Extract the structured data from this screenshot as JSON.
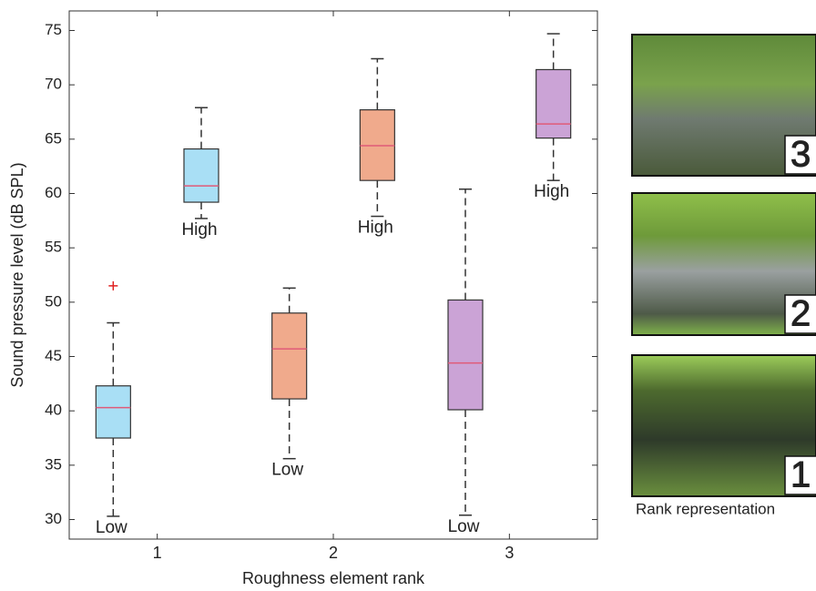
{
  "chart_data": {
    "type": "box",
    "xlabel": "Roughness element rank",
    "ylabel": "Sound pressure level (dB SPL)",
    "xlim": [
      0.5,
      3.5
    ],
    "xticks": [
      1,
      2,
      3
    ],
    "ylim": [
      28.2,
      76.8
    ],
    "yticks": [
      30,
      35,
      40,
      45,
      50,
      55,
      60,
      65,
      70,
      75
    ],
    "median_color": "#e05a78",
    "outlier_color": "#e02020",
    "boxes": [
      {
        "x": 0.75,
        "label": "Low",
        "color": "#a9dff5",
        "whisker_low": 30.3,
        "q1": 37.5,
        "median": 40.3,
        "q3": 42.3,
        "whisker_high": 48.1,
        "outliers": [
          51.5
        ]
      },
      {
        "x": 1.25,
        "label": "High",
        "color": "#a9dff5",
        "whisker_low": 57.7,
        "q1": 59.2,
        "median": 60.7,
        "q3": 64.1,
        "whisker_high": 67.9,
        "outliers": []
      },
      {
        "x": 1.75,
        "label": "Low",
        "color": "#f0aa8c",
        "whisker_low": 35.6,
        "q1": 41.1,
        "median": 45.7,
        "q3": 49.0,
        "whisker_high": 51.3,
        "outliers": []
      },
      {
        "x": 2.25,
        "label": "High",
        "color": "#f0aa8c",
        "whisker_low": 57.9,
        "q1": 61.2,
        "median": 64.4,
        "q3": 67.7,
        "whisker_high": 72.4,
        "outliers": []
      },
      {
        "x": 2.75,
        "label": "Low",
        "color": "#cba3d6",
        "whisker_low": 30.4,
        "q1": 40.1,
        "median": 44.4,
        "q3": 50.2,
        "whisker_high": 60.4,
        "outliers": []
      },
      {
        "x": 3.25,
        "label": "High",
        "color": "#cba3d6",
        "whisker_low": 61.2,
        "q1": 65.1,
        "median": 66.4,
        "q3": 71.4,
        "whisker_high": 74.7,
        "outliers": []
      }
    ]
  },
  "panel": {
    "caption": "Rank representation",
    "badges": [
      {
        "text": "3",
        "color": "#a070b8"
      },
      {
        "text": "2",
        "color": "#d98a64"
      },
      {
        "text": "1",
        "color": "#5aa8cc"
      }
    ]
  }
}
